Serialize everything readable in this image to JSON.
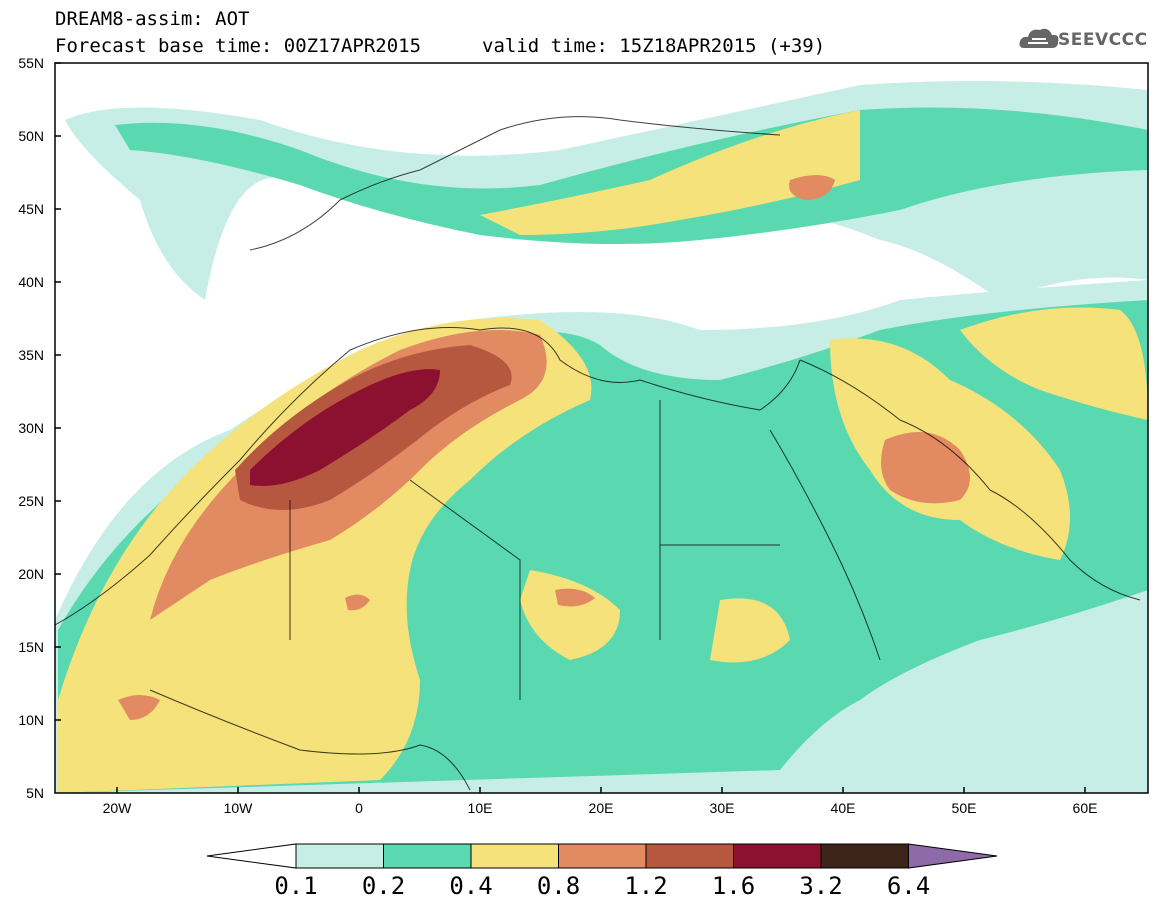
{
  "header": {
    "title": "DREAM8-assim: AOT",
    "base_time": "Forecast base time: 00Z17APR2015",
    "valid_time": "valid time: 15Z18APR2015 (+39)"
  },
  "logo": {
    "text": "SEEVCCC",
    "icon": "cloud-logo-icon"
  },
  "map": {
    "lon_range": [
      -25,
      65
    ],
    "lat_range": [
      5,
      55
    ],
    "lat_labels": [
      "55N",
      "50N",
      "45N",
      "40N",
      "35N",
      "30N",
      "25N",
      "20N",
      "15N",
      "10N",
      "5N"
    ],
    "lon_labels": [
      "20W",
      "10W",
      "0",
      "10E",
      "20E",
      "30E",
      "40E",
      "50E",
      "60E"
    ]
  },
  "colorbar": {
    "labels": [
      "0.1",
      "0.2",
      "0.4",
      "0.8",
      "1.2",
      "1.6",
      "3.2",
      "6.4"
    ],
    "colors": [
      "#ffffff",
      "#c6eee6",
      "#5ad8b0",
      "#f6e27a",
      "#e28a62",
      "#b65840",
      "#8c1030",
      "#3c2418",
      "#8e6aa8"
    ]
  }
}
